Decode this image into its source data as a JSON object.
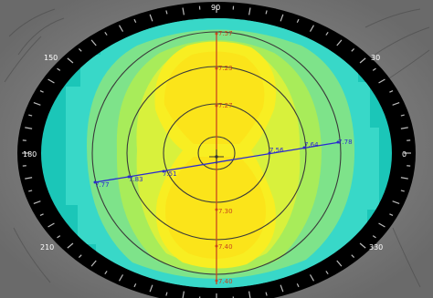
{
  "degree_labels": {
    "deg_90": "90",
    "deg_150": "150",
    "deg_30": "30",
    "deg_180": "180",
    "deg_0": "0",
    "deg_210": "210",
    "deg_330": "330"
  },
  "vertical_meridian": {
    "color": "#c8461e",
    "values": [
      "7.57",
      "7.23",
      "7.27",
      "7.30",
      "7.40",
      "7.40"
    ]
  },
  "horizontal_meridian": {
    "color": "#2a2ad0",
    "values": [
      "7.77",
      "7.83",
      "7.51",
      "7.56",
      "7.64",
      "7.78"
    ]
  },
  "map_colors": {
    "outer_teal": "#1bc6b8",
    "cyan": "#38d8c8",
    "light_green": "#7ee38a",
    "green": "#a8ec5a",
    "yellow_green": "#d8f13c",
    "yellow": "#f8ee22",
    "bright_yellow": "#fbe41a",
    "ring_black": "#000000",
    "grid_line": "#3a3a3a"
  },
  "icons": {
    "center_mark": "crosshair-icon"
  }
}
